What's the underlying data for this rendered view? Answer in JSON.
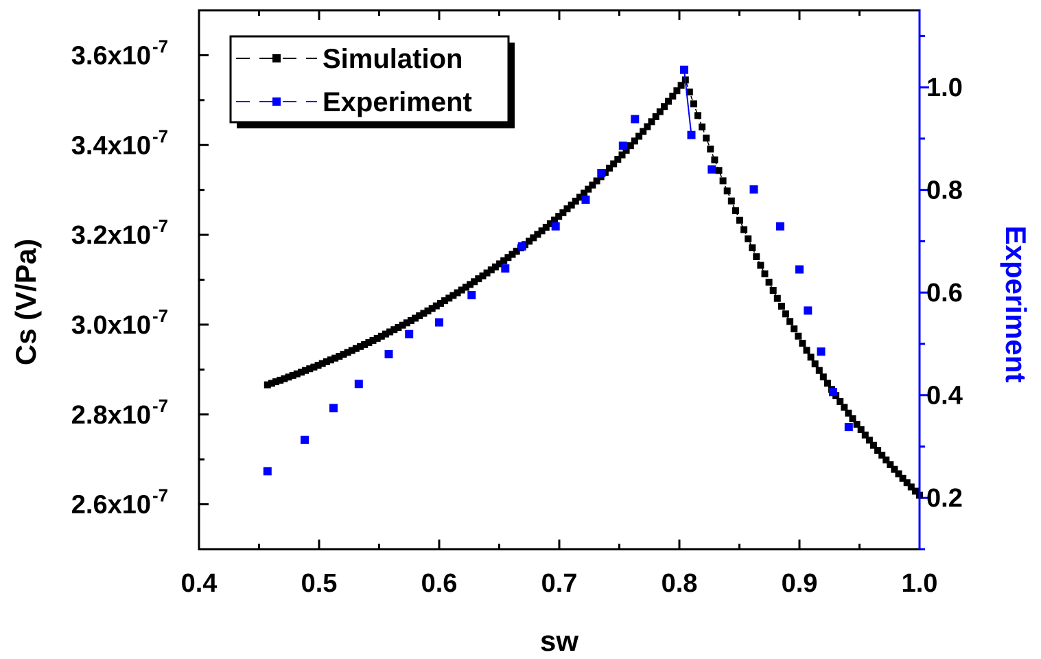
{
  "chart_data": {
    "type": "scatter",
    "title": "",
    "xlabel": "sw",
    "ylabel_left": "Cs (V/Pa)",
    "ylabel_right": "Experiment",
    "xlim": [
      0.4,
      1.0
    ],
    "ylim_left": [
      2.5e-07,
      3.7e-07
    ],
    "ylim_right": [
      0.1,
      1.15
    ],
    "x_ticks": [
      "0.4",
      "0.5",
      "0.6",
      "0.7",
      "0.8",
      "0.9",
      "1.0"
    ],
    "x_tick_values": [
      0.4,
      0.5,
      0.6,
      0.7,
      0.8,
      0.9,
      1.0
    ],
    "y_left_ticks": [
      {
        "value": 2.6e-07,
        "mantissa": "2.6x10",
        "exp": "-7"
      },
      {
        "value": 2.8e-07,
        "mantissa": "2.8x10",
        "exp": "-7"
      },
      {
        "value": 3e-07,
        "mantissa": "3.0x10",
        "exp": "-7"
      },
      {
        "value": 3.2e-07,
        "mantissa": "3.2x10",
        "exp": "-7"
      },
      {
        "value": 3.4e-07,
        "mantissa": "3.4x10",
        "exp": "-7"
      },
      {
        "value": 3.6e-07,
        "mantissa": "3.6x10",
        "exp": "-7"
      }
    ],
    "y_right_ticks": [
      "0.2",
      "0.4",
      "0.6",
      "0.8",
      "1.0"
    ],
    "y_right_tick_values": [
      0.2,
      0.4,
      0.6,
      0.8,
      1.0
    ],
    "legend": {
      "placement": "top-left",
      "entries": [
        "Simulation",
        "Experiment"
      ]
    },
    "series": [
      {
        "name": "Simulation",
        "axis": "left",
        "color": "#000000",
        "model": "piecewise-exponential",
        "rise": {
          "x_start": 0.457,
          "x_end": 0.805,
          "y_start": 2.866e-07,
          "y_end": 3.545e-07,
          "curvature": 1.3,
          "step": 0.0035
        },
        "fall": {
          "x_start": 0.805,
          "x_end": 1.0,
          "y_start": 3.545e-07,
          "y_end": 2.62e-07,
          "curvature": -1.1,
          "step": 0.0035
        }
      },
      {
        "name": "Experiment",
        "axis": "right",
        "color": "#0000ff",
        "x": [
          0.457,
          0.488,
          0.512,
          0.533,
          0.558,
          0.575,
          0.6,
          0.627,
          0.655,
          0.669,
          0.697,
          0.722,
          0.735,
          0.753,
          0.763,
          0.804,
          0.81,
          0.827,
          0.862,
          0.884,
          0.9,
          0.907,
          0.918,
          0.928,
          0.941
        ],
        "y": [
          0.252,
          0.313,
          0.375,
          0.422,
          0.48,
          0.519,
          0.542,
          0.595,
          0.647,
          0.69,
          0.729,
          0.781,
          0.833,
          0.886,
          0.938,
          1.034,
          0.907,
          0.84,
          0.801,
          0.729,
          0.645,
          0.565,
          0.485,
          0.406,
          0.338
        ],
        "connected_segment": [
          15,
          16
        ]
      }
    ]
  }
}
